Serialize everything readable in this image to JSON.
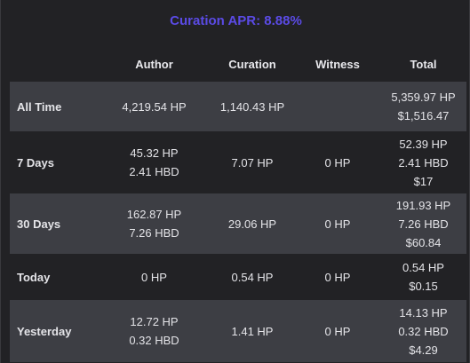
{
  "header": {
    "apr_text": "Curation APR: 8.88%"
  },
  "columns": [
    "",
    "Author",
    "Curation",
    "Witness",
    "Total"
  ],
  "rows": [
    {
      "label": "All Time",
      "author": [
        "4,219.54 HP"
      ],
      "curation": [
        "1,140.43 HP"
      ],
      "witness": [],
      "total": [
        "5,359.97 HP",
        "$1,516.47"
      ]
    },
    {
      "label": "7 Days",
      "author": [
        "45.32 HP",
        "2.41 HBD"
      ],
      "curation": [
        "7.07 HP"
      ],
      "witness": [
        "0 HP"
      ],
      "total": [
        "52.39 HP",
        "2.41 HBD",
        "$17"
      ]
    },
    {
      "label": "30 Days",
      "author": [
        "162.87 HP",
        "7.26 HBD"
      ],
      "curation": [
        "29.06 HP"
      ],
      "witness": [
        "0 HP"
      ],
      "total": [
        "191.93 HP",
        "7.26 HBD",
        "$60.84"
      ]
    },
    {
      "label": "Today",
      "author": [
        "0 HP"
      ],
      "curation": [
        "0.54 HP"
      ],
      "witness": [
        "0 HP"
      ],
      "total": [
        "0.54 HP",
        "$0.15"
      ]
    },
    {
      "label": "Yesterday",
      "author": [
        "12.72 HP",
        "0.32 HBD"
      ],
      "curation": [
        "1.41 HP"
      ],
      "witness": [
        "0 HP"
      ],
      "total": [
        "14.13 HP",
        "0.32 HBD",
        "$4.29"
      ]
    }
  ]
}
